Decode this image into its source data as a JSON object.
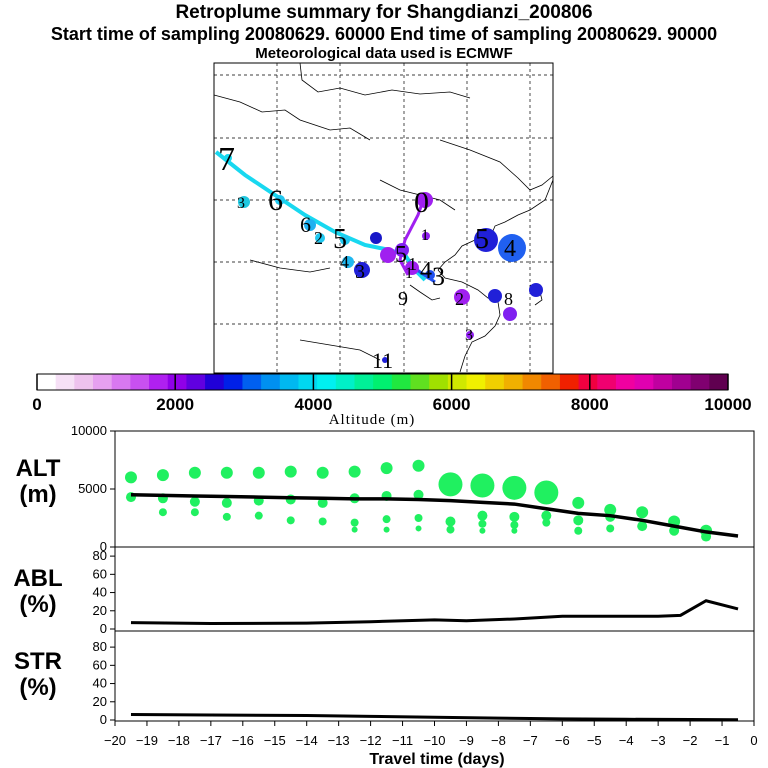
{
  "header": {
    "title": "Retroplume summary for Shangdianzi_200806",
    "line2": "Start time of sampling 20080629. 60000     End time of sampling 20080629. 90000",
    "line3": "Meteorological data used is ECMWF"
  },
  "colorbar": {
    "label": "Altitude (m)",
    "ticks": [
      "0",
      "2000",
      "4000",
      "6000",
      "8000",
      "10000"
    ],
    "range": [
      0,
      10000
    ],
    "colors": [
      "#ffffff",
      "#f6e0f6",
      "#eec2ee",
      "#e6a0f0",
      "#d878f0",
      "#c850f0",
      "#b020f0",
      "#9000e8",
      "#6000e0",
      "#2000d8",
      "#0020e8",
      "#0060f0",
      "#0090f0",
      "#00b8f0",
      "#00d8f0",
      "#00f0f0",
      "#00f0c8",
      "#00f098",
      "#00f070",
      "#20e840",
      "#60e020",
      "#a0e000",
      "#d0e800",
      "#f0f000",
      "#f0d000",
      "#f0b000",
      "#f08800",
      "#f06000",
      "#f02000",
      "#f00040",
      "#f00070",
      "#f000a0",
      "#e000b0",
      "#c000a0",
      "#a00090",
      "#800070",
      "#600050"
    ]
  },
  "map": {
    "day_labels": [
      {
        "t": "7",
        "c": "#000000"
      },
      {
        "t": "6",
        "c": "#000000"
      },
      {
        "t": "3",
        "c": "#000000"
      },
      {
        "t": "6",
        "c": "#000000"
      },
      {
        "t": "2",
        "c": "#000000"
      },
      {
        "t": "5",
        "c": "#000000"
      },
      {
        "t": "4",
        "c": "#000000"
      },
      {
        "t": "3",
        "c": "#000000"
      },
      {
        "t": "0",
        "c": "#000000"
      },
      {
        "t": "1",
        "c": "#000000"
      },
      {
        "t": "5",
        "c": "#000000"
      },
      {
        "t": "4",
        "c": "#000000"
      },
      {
        "t": "3",
        "c": "#000000"
      },
      {
        "t": "9",
        "c": "#000000"
      },
      {
        "t": "1",
        "c": "#000000"
      },
      {
        "t": "2",
        "c": "#000000"
      },
      {
        "t": "8",
        "c": "#000000"
      },
      {
        "t": "3",
        "c": "#000000"
      },
      {
        "t": "11",
        "c": "#000000"
      },
      {
        "t": "1",
        "c": "#000000"
      },
      {
        "t": "5",
        "c": "#000000"
      },
      {
        "t": "4",
        "c": "#000000"
      }
    ]
  },
  "chart_data": [
    {
      "type": "scatter+line",
      "panel": "ALT",
      "ylabel": "ALT\n(m)",
      "ylabel_line1": "ALT",
      "ylabel_line2": "(m)",
      "ylim": [
        0,
        10000
      ],
      "yticks": [
        "10000",
        "5000",
        "0"
      ],
      "xlim": [
        -20,
        0
      ],
      "x": [
        -19.5,
        -18.5,
        -17.5,
        -16.5,
        -15.5,
        -14.5,
        -13.5,
        -12.5,
        -11.5,
        -10.5,
        -9.5,
        -8.5,
        -7.5,
        -6.5,
        -5.5,
        -4.5,
        -3.5,
        -2.5,
        -1.5,
        -0.5
      ],
      "mean_altitude": [
        4500,
        4450,
        4400,
        4350,
        4300,
        4250,
        4200,
        4150,
        4150,
        4100,
        4000,
        3850,
        3700,
        3300,
        2900,
        2700,
        2300,
        1800,
        1300,
        950
      ],
      "clusters": [
        {
          "x": -19.5,
          "alts": [
            6000,
            4300
          ]
        },
        {
          "x": -18.5,
          "alts": [
            6200,
            4200,
            3000
          ]
        },
        {
          "x": -17.5,
          "alts": [
            6400,
            3900,
            3000
          ]
        },
        {
          "x": -16.5,
          "alts": [
            6400,
            3800,
            2600
          ]
        },
        {
          "x": -15.5,
          "alts": [
            6400,
            4000,
            2700
          ]
        },
        {
          "x": -14.5,
          "alts": [
            6500,
            4100,
            2300
          ]
        },
        {
          "x": -13.5,
          "alts": [
            6400,
            3800,
            2200
          ]
        },
        {
          "x": -12.5,
          "alts": [
            6500,
            4200,
            2100,
            1500
          ]
        },
        {
          "x": -11.5,
          "alts": [
            6800,
            4400,
            2400,
            1500
          ]
        },
        {
          "x": -10.5,
          "alts": [
            7000,
            4500,
            2500,
            1600
          ]
        },
        {
          "x": -9.5,
          "alts": [
            5400,
            2200,
            1500
          ]
        },
        {
          "x": -8.5,
          "alts": [
            5300,
            2700,
            2000,
            1400
          ]
        },
        {
          "x": -7.5,
          "alts": [
            5100,
            2600,
            1900,
            1400
          ]
        },
        {
          "x": -6.5,
          "alts": [
            4700,
            2700,
            2100
          ]
        },
        {
          "x": -5.5,
          "alts": [
            3800,
            2300,
            1400
          ]
        },
        {
          "x": -4.5,
          "alts": [
            3200,
            2600,
            1600
          ]
        },
        {
          "x": -3.5,
          "alts": [
            3000,
            1800
          ]
        },
        {
          "x": -2.5,
          "alts": [
            2200,
            1400
          ]
        },
        {
          "x": -1.5,
          "alts": [
            1400,
            900
          ]
        }
      ]
    },
    {
      "type": "line",
      "panel": "ABL",
      "ylabel_line1": "ABL",
      "ylabel_line2": "(%)",
      "ylim": [
        0,
        90
      ],
      "yticks": [
        "80",
        "60",
        "40",
        "20",
        "0"
      ],
      "xlim": [
        -20,
        0
      ],
      "x": [
        -19.5,
        -17,
        -14,
        -12,
        -10,
        -9,
        -7.5,
        -6,
        -4.5,
        -3,
        -2.3,
        -1.5,
        -0.5
      ],
      "values": [
        7,
        6,
        6.5,
        8,
        10,
        9,
        11,
        14,
        14,
        14,
        15,
        31,
        22
      ]
    },
    {
      "type": "line",
      "panel": "STR",
      "ylabel_line1": "STR",
      "ylabel_line2": "(%)",
      "ylim": [
        0,
        90
      ],
      "yticks": [
        "80",
        "60",
        "40",
        "20",
        "0"
      ],
      "xlim": [
        -20,
        0
      ],
      "x": [
        -19.5,
        -17,
        -14,
        -12,
        -10,
        -8,
        -6,
        -4,
        -2,
        -0.5
      ],
      "values": [
        6,
        5.5,
        5,
        4,
        3,
        2,
        1.2,
        0.8,
        0.5,
        0.3
      ]
    }
  ],
  "xaxis": {
    "label": "Travel time (days)",
    "ticks": [
      -20,
      -19,
      -18,
      -17,
      -16,
      -15,
      -14,
      -13,
      -12,
      -11,
      -10,
      -9,
      -8,
      -7,
      -6,
      -5,
      -4,
      -3,
      -2,
      -1,
      0
    ],
    "tick_labels": [
      "−20",
      "−19",
      "−18",
      "−17",
      "−16",
      "−15",
      "−14",
      "−13",
      "−12",
      "−11",
      "−10",
      "−9",
      "−8",
      "−7",
      "−6",
      "−5",
      "−4",
      "−3",
      "−2",
      "−1",
      "0"
    ]
  }
}
